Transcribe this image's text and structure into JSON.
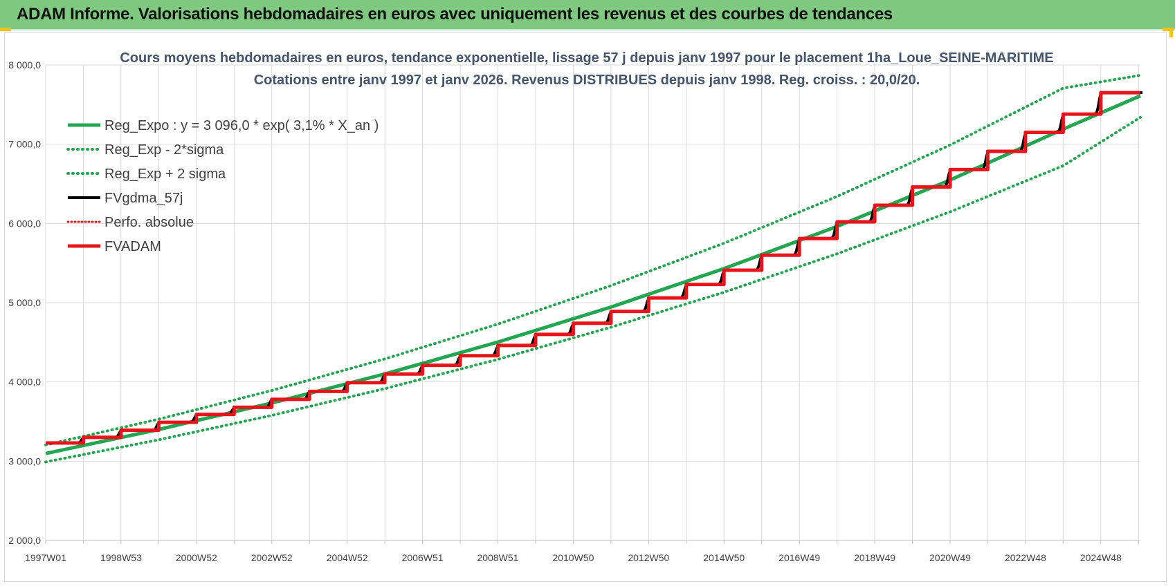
{
  "header": {
    "title": "ADAM Informe. Valorisations hebdomadaires en euros avec uniquement les revenus et des courbes de tendances"
  },
  "colors": {
    "header_bg": "#7ec87f",
    "trend": "#22a750",
    "fv": "#000000",
    "adam": "#e8141b",
    "perf": "#e8141b"
  },
  "chart_data": {
    "type": "line",
    "title": "Cours moyens hebdomadaires en euros, tendance exponentielle, lissage 57 j depuis janv 1997  pour le placement 1ha_Loue_SEINE-MARITIME",
    "subtitle": "Cotations entre janv 1997 et janv 2026. Revenus DISTRIBUES depuis janv 1998.  Reg. croiss. : 20,0/20.",
    "x_range": [
      1997.0,
      2026.05
    ],
    "x_tick_labels": [
      "1997W01",
      "1998W53",
      "2000W52",
      "2002W52",
      "2004W52",
      "2006W51",
      "2008W51",
      "2010W50",
      "2012W50",
      "2014W50",
      "2016W49",
      "2018W49",
      "2020W49",
      "2022W48",
      "2024W48"
    ],
    "ylim": [
      2000,
      8000
    ],
    "y_tick_labels": [
      "2 000,0",
      "3 000,0",
      "4 000,0",
      "5 000,0",
      "6 000,0",
      "7 000,0",
      "8 000,0"
    ],
    "grid": true,
    "legend_position": "top-left",
    "legend": [
      {
        "key": "reg_expo",
        "label": "Reg_Expo : y = 3 096,0 * exp( 3,1% *  X_an )"
      },
      {
        "key": "reg_minus",
        "label": "Reg_Exp - 2*sigma"
      },
      {
        "key": "reg_plus",
        "label": "Reg_Exp + 2 sigma"
      },
      {
        "key": "fvgdma",
        "label": "FVgdma_57j"
      },
      {
        "key": "perfo",
        "label": "Perfo. absolue"
      },
      {
        "key": "fvadam",
        "label": "FVADAM"
      }
    ],
    "series": [
      {
        "key": "reg_expo",
        "x": [
          1997,
          2000,
          2003,
          2006,
          2009,
          2012,
          2015,
          2018,
          2021,
          2024,
          2026.05
        ],
        "values": [
          3096,
          3400,
          3734,
          4100,
          4503,
          4944,
          5430,
          5962,
          6548,
          7190,
          7610
        ]
      },
      {
        "key": "reg_minus",
        "x": [
          1997,
          2000,
          2003,
          2006,
          2009,
          2012,
          2015,
          2018,
          2021,
          2024,
          2026.05
        ],
        "values": [
          2990,
          3270,
          3578,
          3915,
          4285,
          4690,
          5132,
          5617,
          6147,
          6728,
          7340
        ]
      },
      {
        "key": "reg_plus",
        "x": [
          1997,
          2000,
          2003,
          2006,
          2009,
          2012,
          2015,
          2018,
          2021,
          2024,
          2026.05
        ],
        "values": [
          3205,
          3530,
          3892,
          4290,
          4730,
          5215,
          5750,
          6340,
          6990,
          7707,
          7870
        ]
      },
      {
        "key": "fvadam",
        "x": [
          1997,
          1998,
          1999,
          2000,
          2001,
          2002,
          2003,
          2004,
          2005,
          2006,
          2007,
          2008,
          2009,
          2010,
          2011,
          2012,
          2013,
          2014,
          2015,
          2016,
          2017,
          2018,
          2019,
          2020,
          2021,
          2022,
          2023,
          2024,
          2025,
          2026.05
        ],
        "values": [
          3230,
          3300,
          3390,
          3490,
          3590,
          3680,
          3780,
          3880,
          3990,
          4100,
          4210,
          4330,
          4460,
          4600,
          4740,
          4890,
          5060,
          5230,
          5410,
          5600,
          5810,
          6020,
          6230,
          6460,
          6680,
          6910,
          7150,
          7380,
          7650,
          7650
        ]
      }
    ]
  }
}
